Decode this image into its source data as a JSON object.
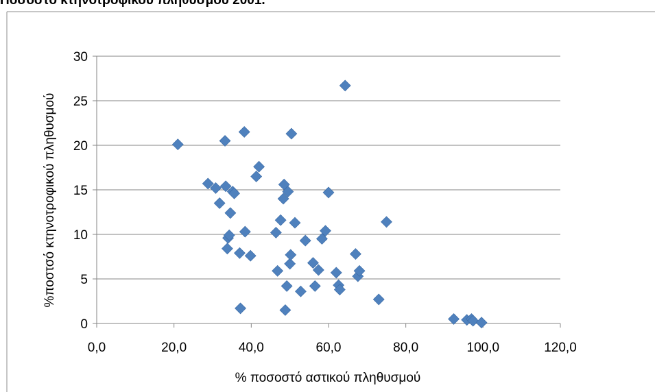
{
  "title": "Ποσοστό κτηνοτροφικού πληθυσμού 2001.",
  "chart_data": {
    "type": "scatter",
    "title": "Ποσοστό κτηνοτροφικού πληθυσμού 2001.",
    "xlabel": "% ποσοστό αστικού πληθυσμού",
    "ylabel": "%ποστσό κτηνοτροφικού πληθυσμού",
    "xlim": [
      0,
      120
    ],
    "ylim": [
      0,
      30
    ],
    "xticks": [
      "0,0",
      "20,0",
      "40,0",
      "60,0",
      "80,0",
      "100,0",
      "120,0"
    ],
    "yticks": [
      "0",
      "5",
      "10",
      "15",
      "20",
      "25",
      "30"
    ],
    "grid": "horizontal",
    "legend": "none",
    "marker_color": "#4f81bd",
    "points": [
      [
        21.0,
        20.1
      ],
      [
        28.8,
        15.7
      ],
      [
        30.8,
        15.2
      ],
      [
        31.8,
        13.5
      ],
      [
        33.2,
        20.5
      ],
      [
        33.4,
        15.4
      ],
      [
        33.8,
        8.4
      ],
      [
        34.0,
        9.6
      ],
      [
        34.3,
        9.9
      ],
      [
        34.6,
        12.4
      ],
      [
        35.2,
        14.8
      ],
      [
        35.6,
        14.6
      ],
      [
        37.0,
        7.9
      ],
      [
        37.2,
        1.7
      ],
      [
        38.2,
        21.5
      ],
      [
        38.4,
        10.3
      ],
      [
        39.8,
        7.6
      ],
      [
        41.3,
        16.5
      ],
      [
        42.0,
        17.6
      ],
      [
        46.4,
        10.2
      ],
      [
        46.8,
        5.9
      ],
      [
        47.6,
        11.6
      ],
      [
        48.3,
        14.0
      ],
      [
        48.5,
        15.6
      ],
      [
        48.8,
        1.5
      ],
      [
        49.2,
        4.2
      ],
      [
        49.5,
        14.8
      ],
      [
        50.0,
        6.7
      ],
      [
        50.2,
        7.7
      ],
      [
        50.4,
        21.3
      ],
      [
        51.3,
        11.3
      ],
      [
        52.8,
        3.6
      ],
      [
        54.0,
        9.3
      ],
      [
        56.0,
        6.8
      ],
      [
        56.5,
        4.2
      ],
      [
        57.4,
        6.0
      ],
      [
        58.3,
        9.5
      ],
      [
        59.2,
        10.4
      ],
      [
        60.0,
        14.7
      ],
      [
        62.0,
        5.7
      ],
      [
        62.6,
        4.3
      ],
      [
        62.9,
        3.8
      ],
      [
        64.3,
        26.7
      ],
      [
        67.0,
        7.8
      ],
      [
        67.6,
        5.3
      ],
      [
        68.0,
        5.9
      ],
      [
        73.0,
        2.7
      ],
      [
        75.0,
        11.4
      ],
      [
        92.4,
        0.5
      ],
      [
        95.8,
        0.4
      ],
      [
        97.0,
        0.5
      ],
      [
        97.4,
        0.3
      ],
      [
        99.6,
        0.1
      ]
    ]
  }
}
